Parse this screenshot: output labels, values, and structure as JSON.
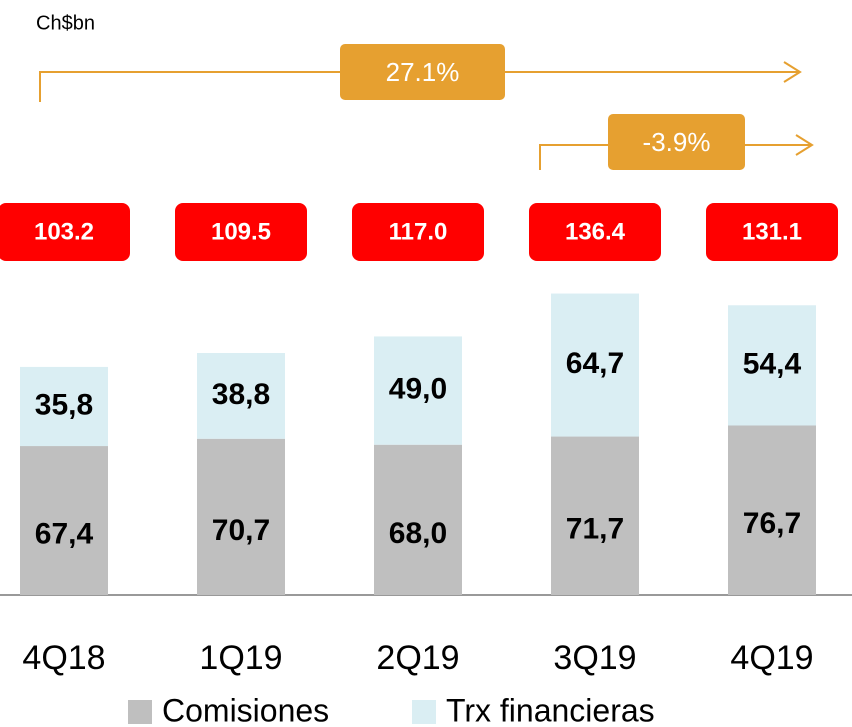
{
  "chart_data": {
    "type": "stacked_bar",
    "unit_label": "Ch$bn",
    "categories": [
      "4Q18",
      "1Q19",
      "2Q19",
      "3Q19",
      "4Q19"
    ],
    "series": [
      {
        "name": "Comisiones",
        "color": "#bfbfbf",
        "values": [
          67.4,
          70.7,
          68.0,
          71.7,
          76.7
        ],
        "value_labels": [
          "67,4",
          "70,7",
          "68,0",
          "71,7",
          "76,7"
        ]
      },
      {
        "name": "Trx financieras",
        "color": "#daeef3",
        "values": [
          35.8,
          38.8,
          49.0,
          64.7,
          54.4
        ],
        "value_labels": [
          "35,8",
          "38,8",
          "49,0",
          "64,7",
          "54,4"
        ]
      }
    ],
    "totals": {
      "color": "#ff0000",
      "values": [
        103.2,
        109.5,
        117.0,
        136.4,
        131.1
      ],
      "value_labels": [
        "103.2",
        "109.5",
        "117.0",
        "136.4",
        "131.1"
      ]
    },
    "annotations": [
      {
        "text": "27.1%",
        "from": "4Q18",
        "to": "4Q19"
      },
      {
        "text": "-3.9%",
        "from": "3Q19",
        "to": "4Q19"
      }
    ],
    "annotation_color": "#e6a030"
  }
}
